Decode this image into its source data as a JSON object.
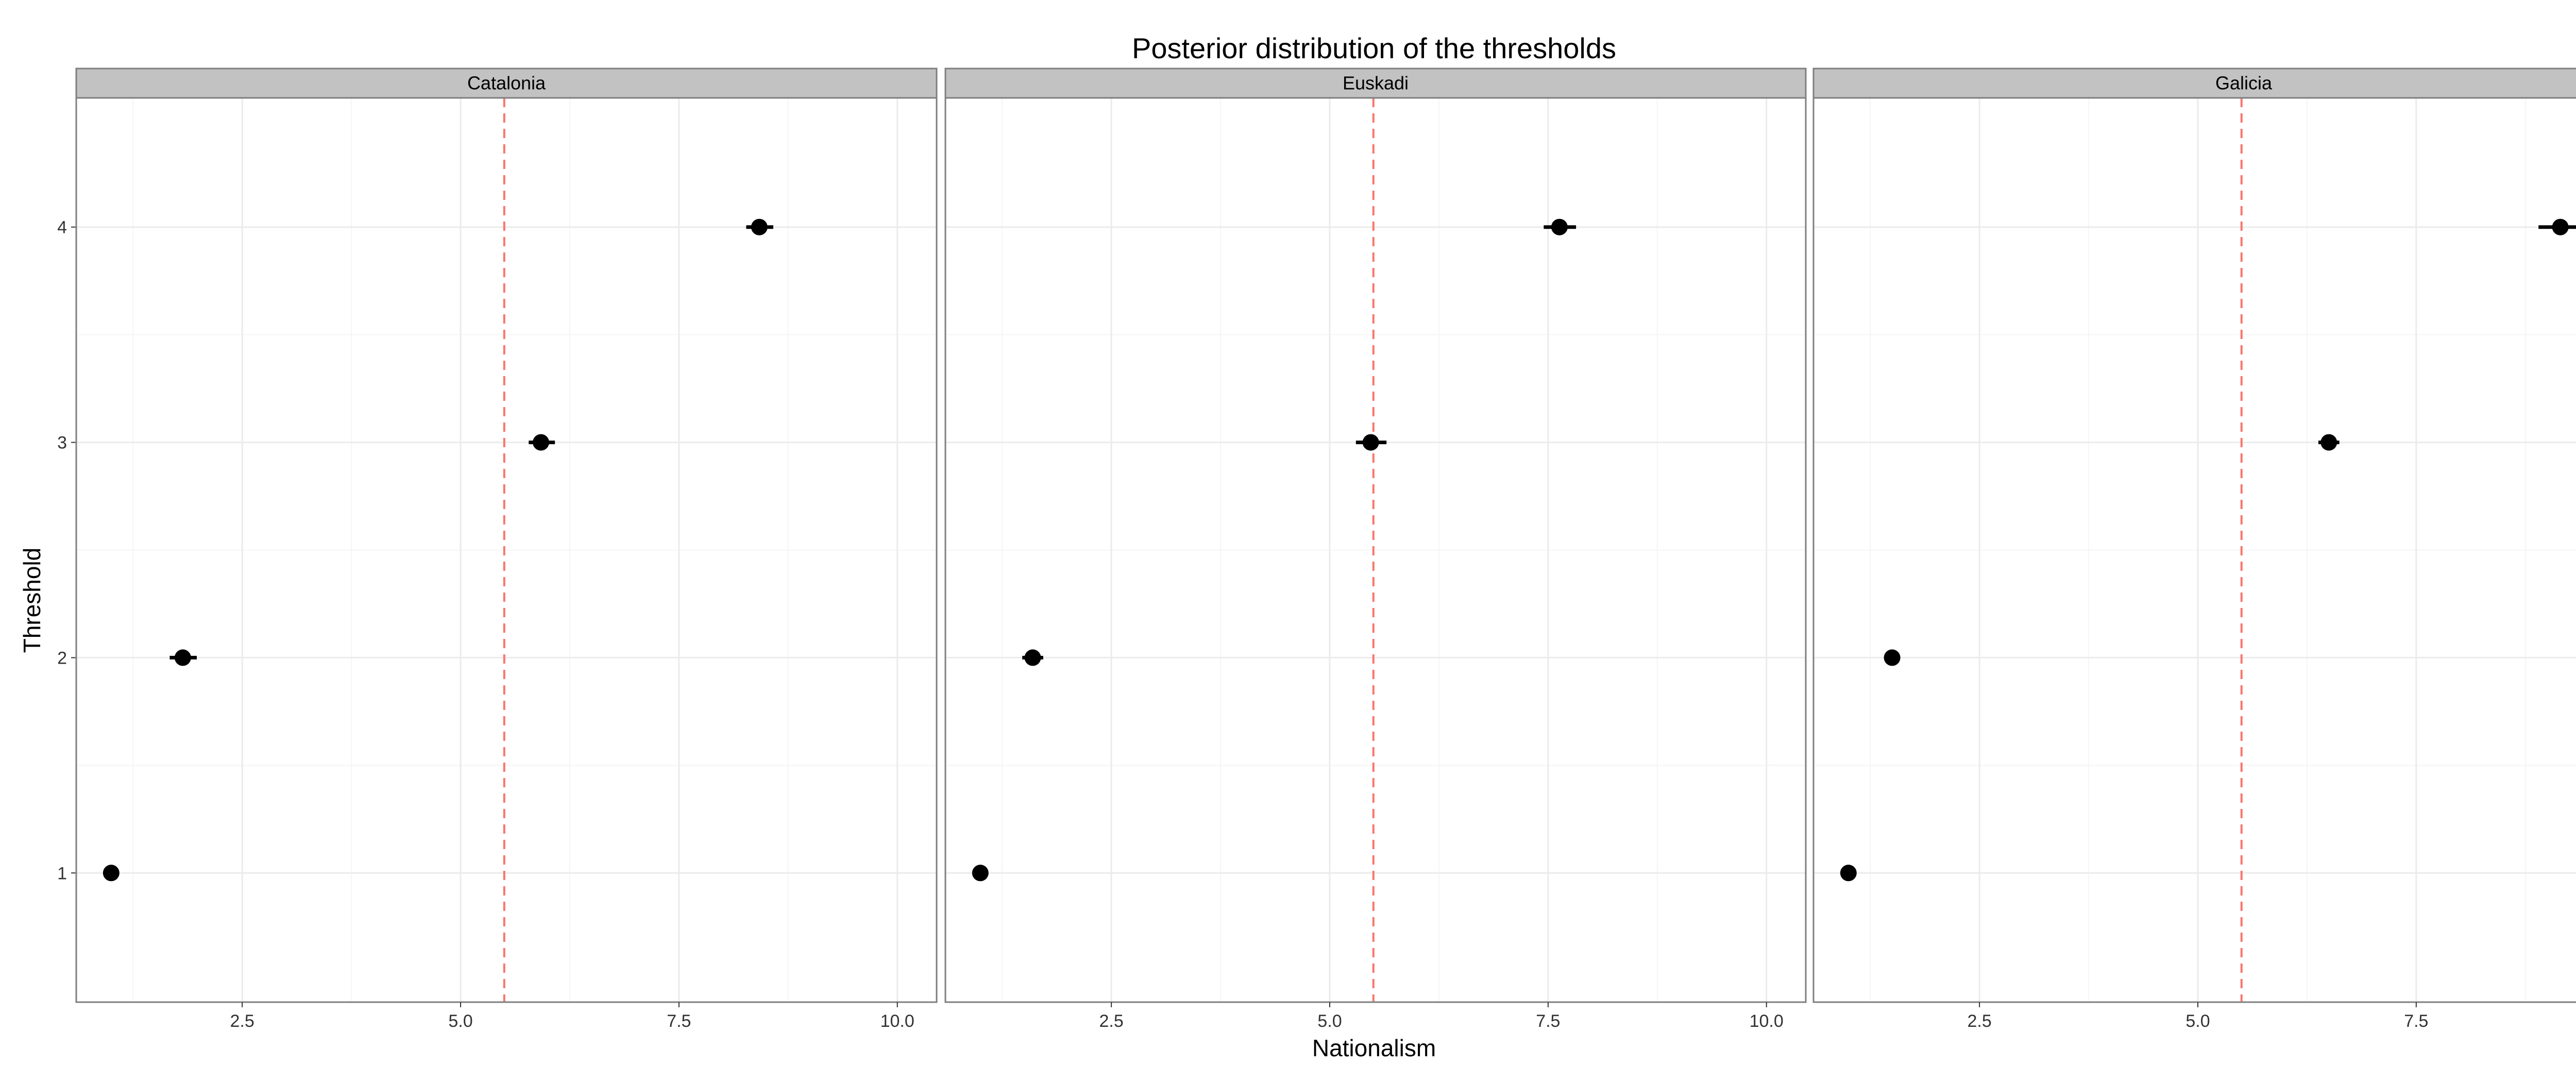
{
  "chart_data": {
    "type": "scatter",
    "title": "Posterior distribution of the thresholds",
    "xlabel": "Nationalism",
    "ylabel": "Threshold",
    "xlim": [
      0.6,
      10.45
    ],
    "ylim": [
      0.4,
      4.6
    ],
    "x_ticks": [
      2.5,
      5.0,
      7.5,
      10.0
    ],
    "x_tick_labels": [
      "2.5",
      "5.0",
      "7.5",
      "10.0"
    ],
    "y_ticks": [
      1,
      2,
      3,
      4
    ],
    "y_tick_labels": [
      "1",
      "2",
      "3",
      "4"
    ],
    "grid": true,
    "reference_line": {
      "x": 5.5,
      "style": "dashed",
      "color": "#f8766d"
    },
    "colors": {
      "point": "#000000",
      "strip_background": "#c2c2c2",
      "panel_border": "#7f7f7f",
      "grid_major": "#ebebeb",
      "grid_minor": "#f5f5f5"
    },
    "panels": [
      {
        "name": "Catalonia",
        "points": [
          {
            "threshold": 1,
            "x": 1.0,
            "lo": 0.97,
            "hi": 1.03
          },
          {
            "threshold": 2,
            "x": 1.82,
            "lo": 1.67,
            "hi": 1.98
          },
          {
            "threshold": 3,
            "x": 5.92,
            "lo": 5.78,
            "hi": 6.08
          },
          {
            "threshold": 4,
            "x": 8.42,
            "lo": 8.27,
            "hi": 8.58
          }
        ]
      },
      {
        "name": "Euskadi",
        "points": [
          {
            "threshold": 1,
            "x": 1.0,
            "lo": 0.97,
            "hi": 1.03
          },
          {
            "threshold": 2,
            "x": 1.6,
            "lo": 1.48,
            "hi": 1.72
          },
          {
            "threshold": 3,
            "x": 5.47,
            "lo": 5.3,
            "hi": 5.65
          },
          {
            "threshold": 4,
            "x": 7.63,
            "lo": 7.45,
            "hi": 7.82
          }
        ]
      },
      {
        "name": "Galicia",
        "points": [
          {
            "threshold": 1,
            "x": 1.0,
            "lo": 0.97,
            "hi": 1.03
          },
          {
            "threshold": 2,
            "x": 1.5,
            "lo": 1.45,
            "hi": 1.55
          },
          {
            "threshold": 3,
            "x": 6.5,
            "lo": 6.38,
            "hi": 6.62
          },
          {
            "threshold": 4,
            "x": 9.15,
            "lo": 8.9,
            "hi": 9.4
          }
        ]
      }
    ]
  }
}
